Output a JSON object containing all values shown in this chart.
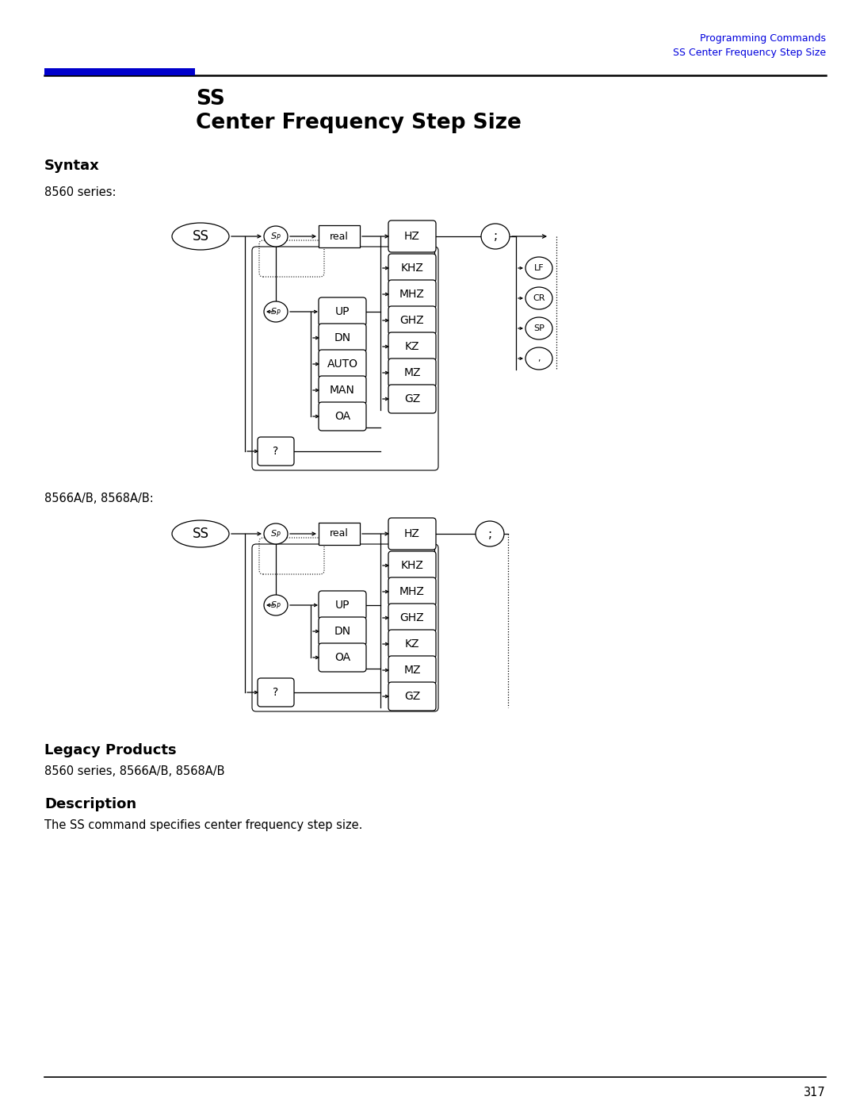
{
  "page_title_right_line1": "Programming Commands",
  "page_title_right_line2": "SS Center Frequency Step Size",
  "blue_bar_color": "#0000CC",
  "main_title_line1": "SS",
  "main_title_line2": "Center Frequency Step Size",
  "syntax_label": "Syntax",
  "series1_label": "8560 series:",
  "series2_label": "8566A/B, 8568A/B:",
  "legacy_title": "Legacy Products",
  "legacy_text": "8560 series, 8566A/B, 8568A/B",
  "description_title": "Description",
  "description_text": "The SS command specifies center frequency step size.",
  "page_number": "317",
  "text_color": "#000000",
  "blue_color": "#0000DD",
  "bg_color": "#ffffff",
  "kz_labels": [
    "KHZ",
    "MHZ",
    "GHZ",
    "KZ",
    "MZ",
    "GZ"
  ],
  "cmd1_labels": [
    "UP",
    "DN",
    "AUTO",
    "MAN",
    "OA"
  ],
  "cmd2_labels": [
    "UP",
    "DN",
    "OA"
  ],
  "sem_labels": [
    "LF",
    "CR",
    "SP",
    ","
  ]
}
